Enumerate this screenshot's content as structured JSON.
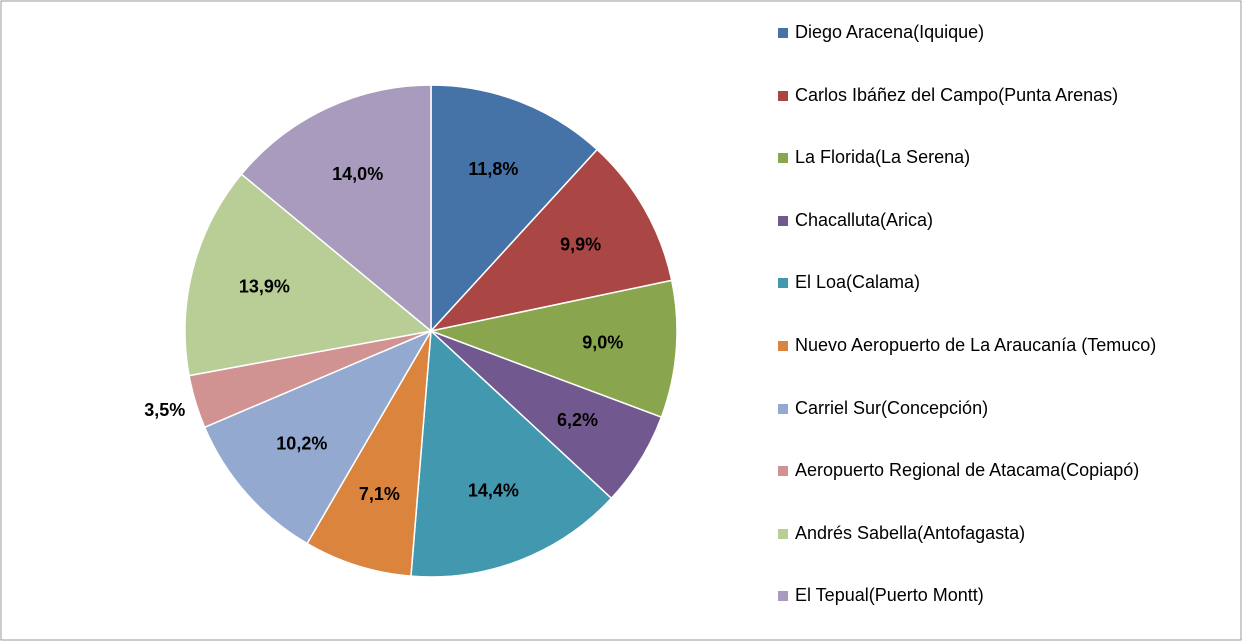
{
  "chart_data": {
    "type": "pie",
    "categories": [
      "Diego Aracena(Iquique)",
      "Carlos Ibáñez del Campo(Punta Arenas)",
      "La Florida(La Serena)",
      "Chacalluta(Arica)",
      "El Loa(Calama)",
      "Nuevo Aeropuerto de La Araucanía (Temuco)",
      "Carriel Sur(Concepción)",
      "Aeropuerto Regional de Atacama(Copiapó)",
      "Andrés Sabella(Antofagasta)",
      "El Tepual(Puerto Montt)"
    ],
    "values": [
      11.8,
      9.9,
      9.0,
      6.2,
      14.4,
      7.1,
      10.2,
      3.5,
      13.9,
      14.0
    ],
    "value_labels": [
      "11,8%",
      "9,9%",
      "9,0%",
      "6,2%",
      "14,4%",
      "7,1%",
      "10,2%",
      "3,5%",
      "13,9%",
      "14,0%"
    ],
    "colors": [
      "#4572a7",
      "#aa4643",
      "#89a54e",
      "#71588f",
      "#4198af",
      "#db843d",
      "#93a9cf",
      "#d19392",
      "#b9cd96",
      "#a99bbd"
    ],
    "legend": "right"
  }
}
